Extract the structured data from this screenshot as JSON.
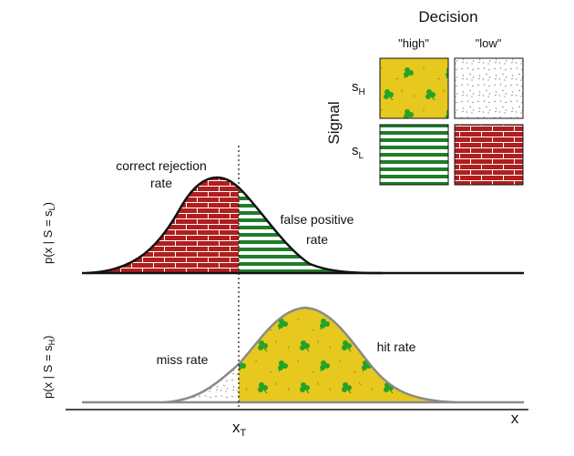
{
  "decision": {
    "title": "Decision",
    "col_high": "\"high\"",
    "col_low": "\"low\""
  },
  "signal": {
    "title": "Signal",
    "row_h_base": "s",
    "row_h_sub": "H",
    "row_l_base": "s",
    "row_l_sub": "L"
  },
  "top_panel": {
    "ylabel_main": "p(x | S = s",
    "ylabel_sub": "L",
    "ylabel_close": ")",
    "correct_rejection_line1": "correct rejection",
    "correct_rejection_line2": "rate",
    "false_positive_line1": "false positive",
    "false_positive_line2": "rate"
  },
  "bottom_panel": {
    "ylabel_main": "p(x | S = s",
    "ylabel_sub": "H",
    "ylabel_close": ")",
    "miss_label": "miss rate",
    "hit_label": "hit rate"
  },
  "axis": {
    "threshold_base": "x",
    "threshold_sub": "T",
    "x_label": "x"
  },
  "colors": {
    "brick": "#b01e1e",
    "mortar": "#ffffff",
    "stripe": "#1e7d2a",
    "leaf_bg": "#e6c81e",
    "leaf": "#27a227",
    "speckle": "#8a8a8a",
    "top_curve": "#111111",
    "bottom_curve": "#8a8a8a"
  },
  "icons": {
    "hit_pattern": "leaf-pattern",
    "miss_pattern": "speckle-pattern",
    "false_positive_pattern": "green-stripe-pattern",
    "correct_rejection_pattern": "brick-pattern"
  }
}
